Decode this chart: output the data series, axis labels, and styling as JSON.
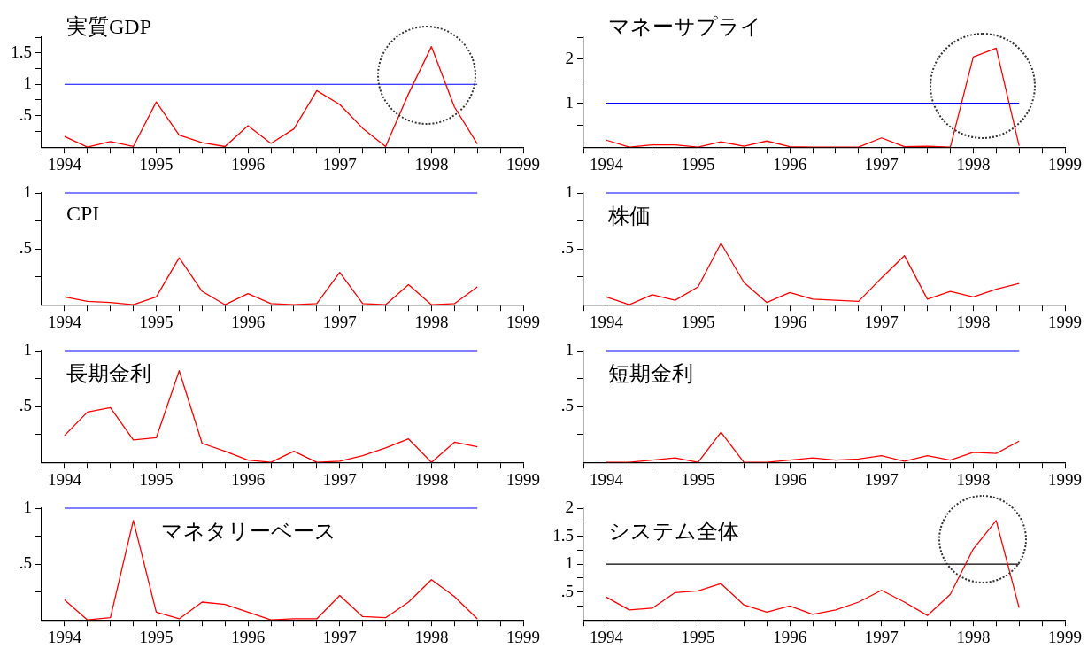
{
  "chart_data": [
    {
      "type": "line",
      "title": "実質GDP",
      "x": [
        1994,
        1994.25,
        1994.5,
        1994.75,
        1995,
        1995.25,
        1995.5,
        1995.75,
        1996,
        1996.25,
        1996.5,
        1996.75,
        1997,
        1997.25,
        1997.5,
        1997.75,
        1998,
        1998.25,
        1998.5
      ],
      "series": [
        {
          "color": "#ff0000",
          "values": [
            0.17,
            0,
            0.09,
            0.01,
            0.72,
            0.19,
            0.07,
            0.01,
            0.34,
            0.06,
            0.29,
            0.9,
            0.68,
            0.3,
            0.01,
            0.85,
            1.6,
            0.64,
            0.05
          ]
        }
      ],
      "ref_lines": [
        {
          "axis": "y",
          "value": 1,
          "color": "#0000ff"
        }
      ],
      "xlim": [
        1993.75,
        1999
      ],
      "xticks": [
        {
          "value": 1993.75,
          "label": null
        },
        1994,
        {
          "value": 1994.25,
          "label": null
        },
        {
          "value": 1994.5,
          "label": null
        },
        {
          "value": 1994.75,
          "label": null
        },
        1995,
        {
          "value": 1995.25,
          "label": null
        },
        {
          "value": 1995.5,
          "label": null
        },
        {
          "value": 1995.75,
          "label": null
        },
        1996,
        {
          "value": 1996.25,
          "label": null
        },
        {
          "value": 1996.5,
          "label": null
        },
        {
          "value": 1996.75,
          "label": null
        },
        1997,
        {
          "value": 1997.25,
          "label": null
        },
        {
          "value": 1997.5,
          "label": null
        },
        {
          "value": 1997.75,
          "label": null
        },
        1998,
        {
          "value": 1998.25,
          "label": null
        },
        {
          "value": 1998.5,
          "label": null
        },
        {
          "value": 1998.75,
          "label": null
        },
        1999
      ],
      "ylim": [
        0,
        1.75
      ],
      "yticks": [
        {
          "value": 0.25,
          "label": null
        },
        {
          "value": 0.5,
          "label": ".5"
        },
        {
          "value": 0.75,
          "label": null
        },
        1,
        {
          "value": 1.25,
          "label": null
        },
        1.5,
        {
          "value": 1.75,
          "label": null
        }
      ],
      "grid": false,
      "legend": false,
      "marker": "none",
      "line_style": "solid"
    },
    {
      "type": "line",
      "title": "マネーサプライ",
      "x": [
        1994,
        1994.25,
        1994.5,
        1994.75,
        1995,
        1995.25,
        1995.5,
        1995.75,
        1996,
        1996.25,
        1996.5,
        1996.75,
        1997,
        1997.25,
        1997.5,
        1997.75,
        1998,
        1998.25,
        1998.5
      ],
      "series": [
        {
          "color": "#ff0000",
          "values": [
            0.16,
            0,
            0.05,
            0.05,
            0,
            0.12,
            0.02,
            0.14,
            0.01,
            0,
            0,
            0,
            0.21,
            0.01,
            0.02,
            0,
            2.05,
            2.25,
            0.03
          ]
        }
      ],
      "ref_lines": [
        {
          "axis": "y",
          "value": 1,
          "color": "#0000ff"
        }
      ],
      "xlim": [
        1993.75,
        1999
      ],
      "xticks": [
        {
          "value": 1993.75,
          "label": null
        },
        1994,
        {
          "value": 1994.25,
          "label": null
        },
        {
          "value": 1994.5,
          "label": null
        },
        {
          "value": 1994.75,
          "label": null
        },
        1995,
        {
          "value": 1995.25,
          "label": null
        },
        {
          "value": 1995.5,
          "label": null
        },
        {
          "value": 1995.75,
          "label": null
        },
        1996,
        {
          "value": 1996.25,
          "label": null
        },
        {
          "value": 1996.5,
          "label": null
        },
        {
          "value": 1996.75,
          "label": null
        },
        1997,
        {
          "value": 1997.25,
          "label": null
        },
        {
          "value": 1997.5,
          "label": null
        },
        {
          "value": 1997.75,
          "label": null
        },
        1998,
        {
          "value": 1998.25,
          "label": null
        },
        {
          "value": 1998.5,
          "label": null
        },
        {
          "value": 1998.75,
          "label": null
        },
        1999
      ],
      "ylim": [
        0,
        2.5
      ],
      "yticks": [
        {
          "value": 0.5,
          "label": null
        },
        1,
        {
          "value": 1.5,
          "label": null
        },
        2,
        {
          "value": 2.5,
          "label": null
        }
      ],
      "grid": false,
      "legend": false,
      "marker": "none",
      "line_style": "solid"
    },
    {
      "type": "line",
      "title": "CPI",
      "x": [
        1994,
        1994.25,
        1994.5,
        1994.75,
        1995,
        1995.25,
        1995.5,
        1995.75,
        1996,
        1996.25,
        1996.5,
        1996.75,
        1997,
        1997.25,
        1997.5,
        1997.75,
        1998,
        1998.25,
        1998.5
      ],
      "series": [
        {
          "color": "#ff0000",
          "values": [
            0.07,
            0.03,
            0.02,
            0,
            0.07,
            0.42,
            0.12,
            0,
            0.1,
            0.01,
            0,
            0.01,
            0.29,
            0.01,
            0,
            0.18,
            0,
            0.01,
            0.16
          ]
        }
      ],
      "ref_lines": [
        {
          "axis": "y",
          "value": 1,
          "color": "#0000ff"
        }
      ],
      "xlim": [
        1993.75,
        1999
      ],
      "xticks": [
        {
          "value": 1993.75,
          "label": null
        },
        1994,
        {
          "value": 1994.25,
          "label": null
        },
        {
          "value": 1994.5,
          "label": null
        },
        {
          "value": 1994.75,
          "label": null
        },
        1995,
        {
          "value": 1995.25,
          "label": null
        },
        {
          "value": 1995.5,
          "label": null
        },
        {
          "value": 1995.75,
          "label": null
        },
        1996,
        {
          "value": 1996.25,
          "label": null
        },
        {
          "value": 1996.5,
          "label": null
        },
        {
          "value": 1996.75,
          "label": null
        },
        1997,
        {
          "value": 1997.25,
          "label": null
        },
        {
          "value": 1997.5,
          "label": null
        },
        {
          "value": 1997.75,
          "label": null
        },
        1998,
        {
          "value": 1998.25,
          "label": null
        },
        {
          "value": 1998.5,
          "label": null
        },
        {
          "value": 1998.75,
          "label": null
        },
        1999
      ],
      "ylim": [
        0,
        1
      ],
      "yticks": [
        {
          "value": 0.25,
          "label": null
        },
        {
          "value": 0.5,
          "label": ".5"
        },
        {
          "value": 0.75,
          "label": null
        },
        1
      ],
      "grid": false,
      "legend": false,
      "marker": "none",
      "line_style": "solid"
    },
    {
      "type": "line",
      "title": "株価",
      "x": [
        1994,
        1994.25,
        1994.5,
        1994.75,
        1995,
        1995.25,
        1995.5,
        1995.75,
        1996,
        1996.25,
        1996.5,
        1996.75,
        1997,
        1997.25,
        1997.5,
        1997.75,
        1998,
        1998.25,
        1998.5
      ],
      "series": [
        {
          "color": "#ff0000",
          "values": [
            0.07,
            0,
            0.09,
            0.04,
            0.16,
            0.55,
            0.2,
            0.02,
            0.11,
            0.05,
            0.04,
            0.03,
            0.24,
            0.44,
            0.05,
            0.12,
            0.07,
            0.14,
            0.19
          ]
        }
      ],
      "ref_lines": [
        {
          "axis": "y",
          "value": 1,
          "color": "#0000ff"
        }
      ],
      "xlim": [
        1993.75,
        1999
      ],
      "xticks": [
        {
          "value": 1993.75,
          "label": null
        },
        1994,
        {
          "value": 1994.25,
          "label": null
        },
        {
          "value": 1994.5,
          "label": null
        },
        {
          "value": 1994.75,
          "label": null
        },
        1995,
        {
          "value": 1995.25,
          "label": null
        },
        {
          "value": 1995.5,
          "label": null
        },
        {
          "value": 1995.75,
          "label": null
        },
        1996,
        {
          "value": 1996.25,
          "label": null
        },
        {
          "value": 1996.5,
          "label": null
        },
        {
          "value": 1996.75,
          "label": null
        },
        1997,
        {
          "value": 1997.25,
          "label": null
        },
        {
          "value": 1997.5,
          "label": null
        },
        {
          "value": 1997.75,
          "label": null
        },
        1998,
        {
          "value": 1998.25,
          "label": null
        },
        {
          "value": 1998.5,
          "label": null
        },
        {
          "value": 1998.75,
          "label": null
        },
        1999
      ],
      "ylim": [
        0,
        1
      ],
      "yticks": [
        {
          "value": 0.25,
          "label": null
        },
        {
          "value": 0.5,
          "label": ".5"
        },
        {
          "value": 0.75,
          "label": null
        },
        1
      ],
      "grid": false,
      "legend": false,
      "marker": "none",
      "line_style": "solid"
    },
    {
      "type": "line",
      "title": "長期金利",
      "x": [
        1994,
        1994.25,
        1994.5,
        1994.75,
        1995,
        1995.25,
        1995.5,
        1995.75,
        1996,
        1996.25,
        1996.5,
        1996.75,
        1997,
        1997.25,
        1997.5,
        1997.75,
        1998,
        1998.25,
        1998.5
      ],
      "series": [
        {
          "color": "#ff0000",
          "values": [
            0.24,
            0.45,
            0.49,
            0.2,
            0.22,
            0.82,
            0.17,
            0.1,
            0.02,
            0,
            0.1,
            0,
            0.01,
            0.06,
            0.13,
            0.21,
            0,
            0.18,
            0.14
          ]
        }
      ],
      "ref_lines": [
        {
          "axis": "y",
          "value": 1,
          "color": "#0000ff"
        }
      ],
      "xlim": [
        1993.75,
        1999
      ],
      "xticks": [
        {
          "value": 1993.75,
          "label": null
        },
        1994,
        {
          "value": 1994.25,
          "label": null
        },
        {
          "value": 1994.5,
          "label": null
        },
        {
          "value": 1994.75,
          "label": null
        },
        1995,
        {
          "value": 1995.25,
          "label": null
        },
        {
          "value": 1995.5,
          "label": null
        },
        {
          "value": 1995.75,
          "label": null
        },
        1996,
        {
          "value": 1996.25,
          "label": null
        },
        {
          "value": 1996.5,
          "label": null
        },
        {
          "value": 1996.75,
          "label": null
        },
        1997,
        {
          "value": 1997.25,
          "label": null
        },
        {
          "value": 1997.5,
          "label": null
        },
        {
          "value": 1997.75,
          "label": null
        },
        1998,
        {
          "value": 1998.25,
          "label": null
        },
        {
          "value": 1998.5,
          "label": null
        },
        {
          "value": 1998.75,
          "label": null
        },
        1999
      ],
      "ylim": [
        0,
        1
      ],
      "yticks": [
        {
          "value": 0.25,
          "label": null
        },
        {
          "value": 0.5,
          "label": ".5"
        },
        {
          "value": 0.75,
          "label": null
        },
        1
      ],
      "grid": false,
      "legend": false,
      "marker": "none",
      "line_style": "solid"
    },
    {
      "type": "line",
      "title": "短期金利",
      "x": [
        1994,
        1994.25,
        1994.5,
        1994.75,
        1995,
        1995.25,
        1995.5,
        1995.75,
        1996,
        1996.25,
        1996.5,
        1996.75,
        1997,
        1997.25,
        1997.5,
        1997.75,
        1998,
        1998.25,
        1998.5
      ],
      "series": [
        {
          "color": "#ff0000",
          "values": [
            0,
            0,
            0.02,
            0.04,
            0,
            0.27,
            0,
            0,
            0.02,
            0.04,
            0.02,
            0.03,
            0.06,
            0.01,
            0.06,
            0.02,
            0.09,
            0.08,
            0.19
          ]
        }
      ],
      "ref_lines": [
        {
          "axis": "y",
          "value": 1,
          "color": "#0000ff"
        }
      ],
      "xlim": [
        1993.75,
        1999
      ],
      "xticks": [
        {
          "value": 1993.75,
          "label": null
        },
        1994,
        {
          "value": 1994.25,
          "label": null
        },
        {
          "value": 1994.5,
          "label": null
        },
        {
          "value": 1994.75,
          "label": null
        },
        1995,
        {
          "value": 1995.25,
          "label": null
        },
        {
          "value": 1995.5,
          "label": null
        },
        {
          "value": 1995.75,
          "label": null
        },
        1996,
        {
          "value": 1996.25,
          "label": null
        },
        {
          "value": 1996.5,
          "label": null
        },
        {
          "value": 1996.75,
          "label": null
        },
        1997,
        {
          "value": 1997.25,
          "label": null
        },
        {
          "value": 1997.5,
          "label": null
        },
        {
          "value": 1997.75,
          "label": null
        },
        1998,
        {
          "value": 1998.25,
          "label": null
        },
        {
          "value": 1998.5,
          "label": null
        },
        {
          "value": 1998.75,
          "label": null
        },
        1999
      ],
      "ylim": [
        0,
        1
      ],
      "yticks": [
        {
          "value": 0.25,
          "label": null
        },
        {
          "value": 0.5,
          "label": ".5"
        },
        {
          "value": 0.75,
          "label": null
        },
        1
      ],
      "grid": false,
      "legend": false,
      "marker": "none",
      "line_style": "solid"
    },
    {
      "type": "line",
      "title": "マネタリーベース",
      "x": [
        1994,
        1994.25,
        1994.5,
        1994.75,
        1995,
        1995.25,
        1995.5,
        1995.75,
        1996,
        1996.25,
        1996.5,
        1996.75,
        1997,
        1997.25,
        1997.5,
        1997.75,
        1998,
        1998.25,
        1998.5
      ],
      "series": [
        {
          "color": "#ff0000",
          "values": [
            0.18,
            0,
            0.02,
            0.89,
            0.07,
            0.01,
            0.16,
            0.14,
            0.07,
            0,
            0.01,
            0.01,
            0.22,
            0.03,
            0.02,
            0.16,
            0.36,
            0.21,
            0.01
          ]
        }
      ],
      "ref_lines": [
        {
          "axis": "y",
          "value": 1,
          "color": "#0000ff"
        }
      ],
      "xlim": [
        1993.75,
        1999
      ],
      "xticks": [
        {
          "value": 1993.75,
          "label": null
        },
        1994,
        {
          "value": 1994.25,
          "label": null
        },
        {
          "value": 1994.5,
          "label": null
        },
        {
          "value": 1994.75,
          "label": null
        },
        1995,
        {
          "value": 1995.25,
          "label": null
        },
        {
          "value": 1995.5,
          "label": null
        },
        {
          "value": 1995.75,
          "label": null
        },
        1996,
        {
          "value": 1996.25,
          "label": null
        },
        {
          "value": 1996.5,
          "label": null
        },
        {
          "value": 1996.75,
          "label": null
        },
        1997,
        {
          "value": 1997.25,
          "label": null
        },
        {
          "value": 1997.5,
          "label": null
        },
        {
          "value": 1997.75,
          "label": null
        },
        1998,
        {
          "value": 1998.25,
          "label": null
        },
        {
          "value": 1998.5,
          "label": null
        },
        {
          "value": 1998.75,
          "label": null
        },
        1999
      ],
      "ylim": [
        0,
        1
      ],
      "yticks": [
        {
          "value": 0.25,
          "label": null
        },
        {
          "value": 0.5,
          "label": ".5"
        },
        {
          "value": 0.75,
          "label": null
        },
        1
      ],
      "grid": false,
      "legend": false,
      "marker": "none",
      "line_style": "solid"
    },
    {
      "type": "line",
      "title": "システム全体",
      "x": [
        1994,
        1994.25,
        1994.5,
        1994.75,
        1995,
        1995.25,
        1995.5,
        1995.75,
        1996,
        1996.25,
        1996.5,
        1996.75,
        1997,
        1997.25,
        1997.5,
        1997.75,
        1998,
        1998.25,
        1998.5
      ],
      "series": [
        {
          "color": "#ff0000",
          "values": [
            0.41,
            0.18,
            0.21,
            0.49,
            0.52,
            0.65,
            0.27,
            0.14,
            0.25,
            0.1,
            0.18,
            0.32,
            0.53,
            0.32,
            0.08,
            0.46,
            1.27,
            1.78,
            0.22
          ]
        }
      ],
      "ref_lines": [
        {
          "axis": "y",
          "value": 1,
          "color": "#000000"
        }
      ],
      "xlim": [
        1993.75,
        1999
      ],
      "xticks": [
        {
          "value": 1993.75,
          "label": null
        },
        1994,
        {
          "value": 1994.25,
          "label": null
        },
        {
          "value": 1994.5,
          "label": null
        },
        {
          "value": 1994.75,
          "label": null
        },
        1995,
        {
          "value": 1995.25,
          "label": null
        },
        {
          "value": 1995.5,
          "label": null
        },
        {
          "value": 1995.75,
          "label": null
        },
        1996,
        {
          "value": 1996.25,
          "label": null
        },
        {
          "value": 1996.5,
          "label": null
        },
        {
          "value": 1996.75,
          "label": null
        },
        1997,
        {
          "value": 1997.25,
          "label": null
        },
        {
          "value": 1997.5,
          "label": null
        },
        {
          "value": 1997.75,
          "label": null
        },
        1998,
        {
          "value": 1998.25,
          "label": null
        },
        {
          "value": 1998.5,
          "label": null
        },
        {
          "value": 1998.75,
          "label": null
        },
        1999
      ],
      "ylim": [
        0,
        2
      ],
      "yticks": [
        {
          "value": 0.25,
          "label": null
        },
        {
          "value": 0.5,
          "label": ".5"
        },
        {
          "value": 0.75,
          "label": null
        },
        1,
        {
          "value": 1.25,
          "label": null
        },
        1.5,
        {
          "value": 1.75,
          "label": null
        },
        2
      ],
      "grid": false,
      "legend": false,
      "marker": "none",
      "line_style": "solid"
    }
  ]
}
